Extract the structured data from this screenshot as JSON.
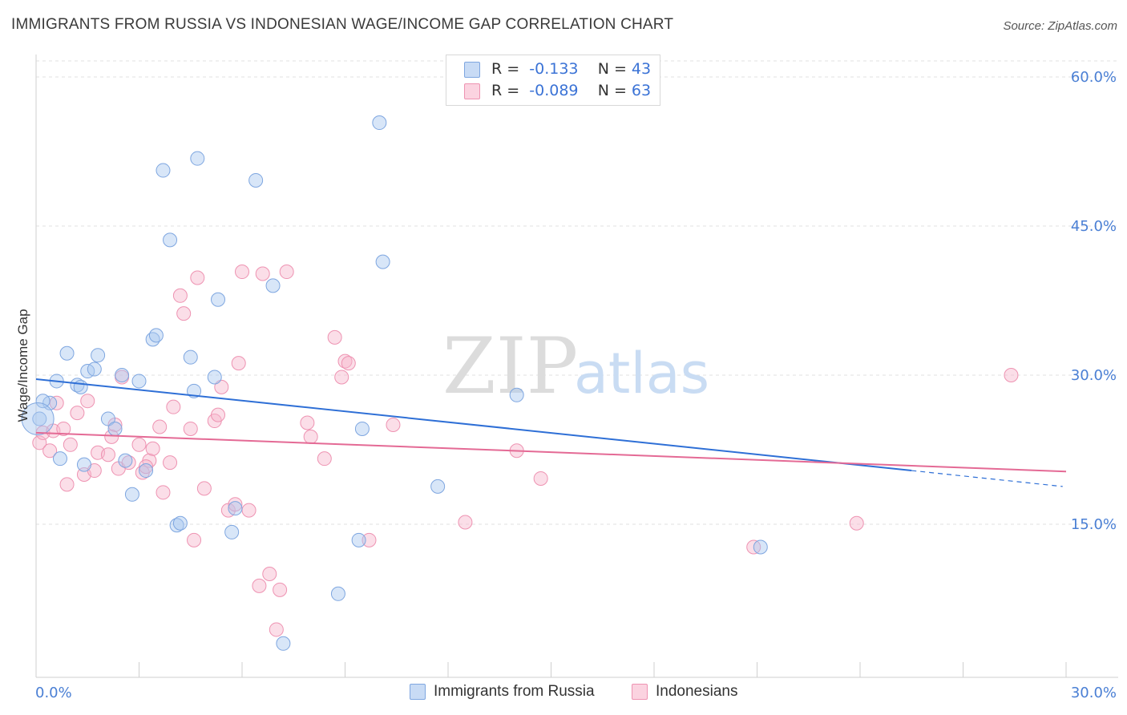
{
  "title": "IMMIGRANTS FROM RUSSIA VS INDONESIAN WAGE/INCOME GAP CORRELATION CHART",
  "source": "Source: ZipAtlas.com",
  "watermark": {
    "zip": "ZIP",
    "atlas": "atlas"
  },
  "legend": {
    "r_label": "R =",
    "n_label": "N =",
    "rows": [
      {
        "r": "-0.133",
        "n": "43",
        "color": "#a9c8f0"
      },
      {
        "r": "-0.089",
        "n": "63",
        "color": "#f6b6cb"
      }
    ]
  },
  "bottom_legend": [
    "Immigrants from Russia",
    "Indonesians"
  ],
  "chart_data": {
    "type": "scatter",
    "title": "IMMIGRANTS FROM RUSSIA VS INDONESIAN WAGE/INCOME GAP CORRELATION CHART",
    "xlabel": "",
    "ylabel": "Wage/Income Gap",
    "xlim": [
      0,
      30
    ],
    "ylim": [
      0,
      62
    ],
    "x_tick_labels": [
      "0.0%",
      "30.0%"
    ],
    "y_ticks": [
      15,
      30,
      45,
      60
    ],
    "y_tick_labels": [
      "15.0%",
      "30.0%",
      "45.0%",
      "60.0%"
    ],
    "grid": true,
    "legend_position": "top-center",
    "series": [
      {
        "name": "Immigrants from Russia",
        "color": "#a9c8f0",
        "line_color": "#2e6fd6",
        "trend": {
          "x_start": 0,
          "y_start": 29.6,
          "x_end": 25.5,
          "y_end": 20.4,
          "dashed_to_x": 29.9,
          "dashed_to_y": 18.8
        },
        "points": [
          [
            0.1,
            25.6
          ],
          [
            0.4,
            27.2
          ],
          [
            0.6,
            29.4
          ],
          [
            0.7,
            21.6
          ],
          [
            0.9,
            32.2
          ],
          [
            1.2,
            29.0
          ],
          [
            1.3,
            28.8
          ],
          [
            1.5,
            30.4
          ],
          [
            1.7,
            30.6
          ],
          [
            1.8,
            32.0
          ],
          [
            2.1,
            25.6
          ],
          [
            2.3,
            24.6
          ],
          [
            2.5,
            30.0
          ],
          [
            2.6,
            21.4
          ],
          [
            2.8,
            18.0
          ],
          [
            3.0,
            29.4
          ],
          [
            3.2,
            20.4
          ],
          [
            3.4,
            33.6
          ],
          [
            3.5,
            34.0
          ],
          [
            3.7,
            50.6
          ],
          [
            3.9,
            43.6
          ],
          [
            4.1,
            14.9
          ],
          [
            4.2,
            15.1
          ],
          [
            4.5,
            31.8
          ],
          [
            4.6,
            28.4
          ],
          [
            4.7,
            51.8
          ],
          [
            5.2,
            29.8
          ],
          [
            5.3,
            37.6
          ],
          [
            5.7,
            14.2
          ],
          [
            5.8,
            16.6
          ],
          [
            6.4,
            49.6
          ],
          [
            6.9,
            39.0
          ],
          [
            7.2,
            3.0
          ],
          [
            8.8,
            8.0
          ],
          [
            9.4,
            13.4
          ],
          [
            9.5,
            24.6
          ],
          [
            10.0,
            55.4
          ],
          [
            10.1,
            41.4
          ],
          [
            11.7,
            18.8
          ],
          [
            14.0,
            28.0
          ],
          [
            21.1,
            12.7
          ],
          [
            1.4,
            21.0
          ],
          [
            0.2,
            27.4
          ]
        ]
      },
      {
        "name": "Indonesians",
        "color": "#f6b6cb",
        "line_color": "#e46a95",
        "trend": {
          "x_start": 0,
          "y_start": 24.2,
          "x_end": 30,
          "y_end": 20.3
        },
        "points": [
          [
            0.1,
            23.2
          ],
          [
            0.2,
            24.2
          ],
          [
            0.4,
            22.4
          ],
          [
            0.5,
            24.4
          ],
          [
            0.6,
            27.2
          ],
          [
            0.8,
            24.6
          ],
          [
            0.9,
            19.0
          ],
          [
            1.0,
            23.0
          ],
          [
            1.2,
            26.2
          ],
          [
            1.4,
            20.0
          ],
          [
            1.5,
            27.4
          ],
          [
            1.7,
            20.4
          ],
          [
            1.8,
            22.2
          ],
          [
            2.1,
            22.0
          ],
          [
            2.3,
            25.0
          ],
          [
            2.4,
            20.6
          ],
          [
            2.5,
            29.8
          ],
          [
            2.7,
            21.2
          ],
          [
            3.0,
            23.0
          ],
          [
            3.1,
            20.2
          ],
          [
            3.3,
            21.4
          ],
          [
            3.4,
            22.6
          ],
          [
            3.6,
            24.8
          ],
          [
            3.7,
            18.2
          ],
          [
            3.9,
            21.2
          ],
          [
            4.0,
            26.8
          ],
          [
            4.2,
            38.0
          ],
          [
            4.3,
            36.2
          ],
          [
            4.5,
            24.6
          ],
          [
            4.6,
            13.4
          ],
          [
            4.7,
            39.8
          ],
          [
            4.9,
            18.6
          ],
          [
            5.2,
            25.4
          ],
          [
            5.3,
            26.0
          ],
          [
            5.4,
            28.8
          ],
          [
            5.6,
            16.4
          ],
          [
            5.8,
            17.0
          ],
          [
            5.9,
            31.2
          ],
          [
            6.0,
            40.4
          ],
          [
            6.2,
            16.4
          ],
          [
            6.5,
            8.8
          ],
          [
            6.6,
            40.2
          ],
          [
            6.8,
            10.0
          ],
          [
            7.0,
            4.4
          ],
          [
            7.1,
            8.4
          ],
          [
            7.3,
            40.4
          ],
          [
            7.9,
            25.2
          ],
          [
            8.0,
            23.8
          ],
          [
            8.4,
            21.6
          ],
          [
            8.7,
            33.8
          ],
          [
            8.9,
            29.8
          ],
          [
            9.0,
            31.4
          ],
          [
            9.1,
            31.2
          ],
          [
            9.7,
            13.4
          ],
          [
            10.4,
            25.0
          ],
          [
            12.5,
            15.2
          ],
          [
            14.0,
            22.4
          ],
          [
            14.7,
            19.6
          ],
          [
            20.9,
            12.7
          ],
          [
            23.9,
            15.1
          ],
          [
            28.4,
            30.0
          ],
          [
            3.2,
            20.8
          ],
          [
            2.2,
            23.8
          ]
        ]
      }
    ]
  }
}
